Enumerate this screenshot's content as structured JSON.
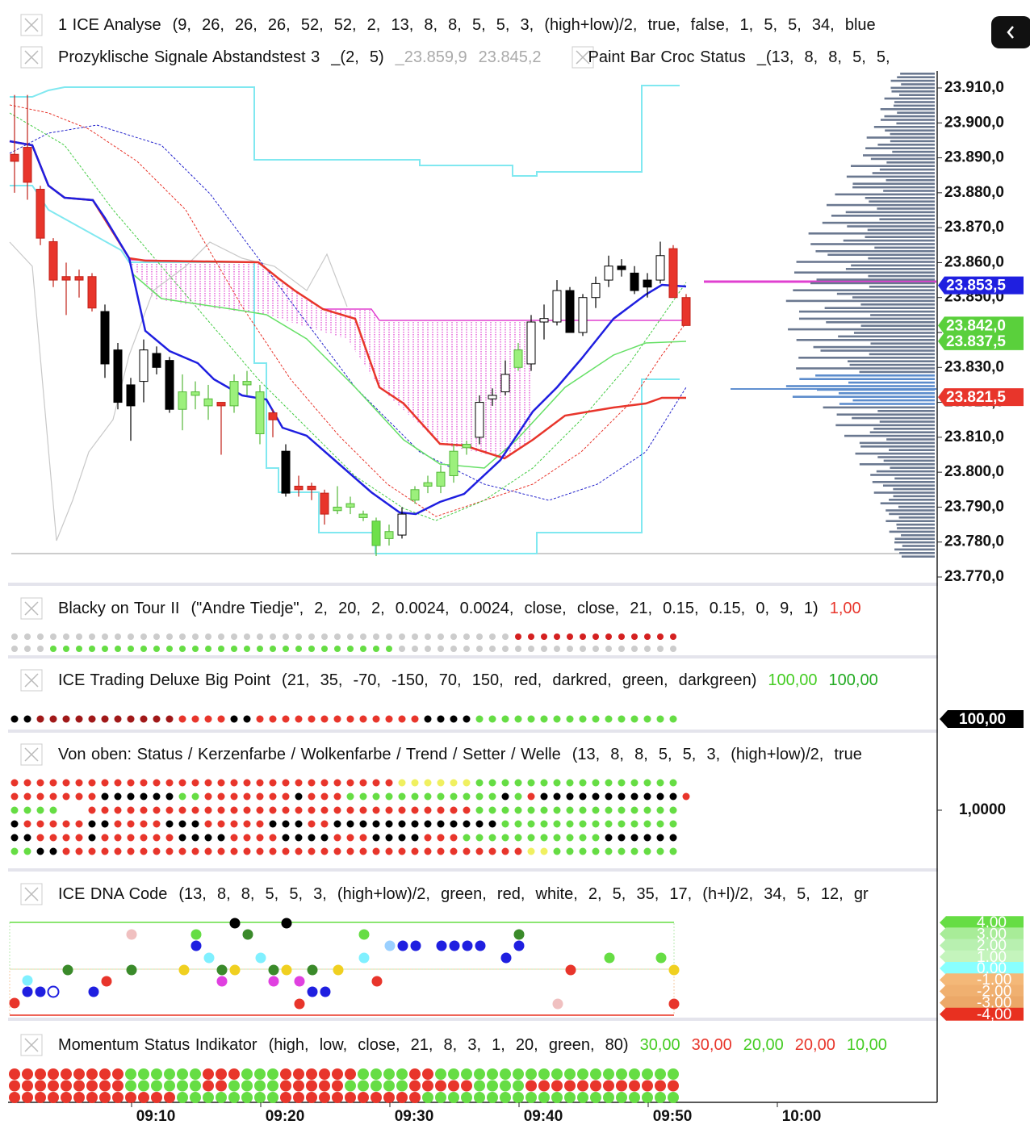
{
  "chart_data": {
    "type": "candlestick",
    "legends": [
      {
        "name": "1 ICE Analyse",
        "params": "(9,  26,  26,  26,  52,  52,  2,  13,  8,  8,  5,  5,  3,  (high+low)/2,  true,  false,  1,  5,  5,  34,  blue"
      },
      {
        "name": "Prozyklische Signale Abstandstest 3",
        "params": "_(2,  5)",
        "values": [
          {
            "value": 23859.9,
            "label": "_23.859,9"
          },
          {
            "value": 23845.2,
            "label": "23.845,2"
          }
        ]
      },
      {
        "name": "Paint Bar Croc Status",
        "params": "_(13,  8,  8,  5,  5,"
      }
    ],
    "ylim": [
      23770,
      23910
    ],
    "yticks": [
      {
        "value": 23910,
        "label": "23.910,0"
      },
      {
        "value": 23900,
        "label": "23.900,0"
      },
      {
        "value": 23890,
        "label": "23.890,0"
      },
      {
        "value": 23880,
        "label": "23.880,0"
      },
      {
        "value": 23870,
        "label": "23.870,0"
      },
      {
        "value": 23860,
        "label": "23.860,0"
      },
      {
        "value": 23850,
        "label": "23.850,0"
      },
      {
        "value": 23840,
        "label": "23.840,0"
      },
      {
        "value": 23830,
        "label": "23.830,0"
      },
      {
        "value": 23820,
        "label": "23.820,0"
      },
      {
        "value": 23810,
        "label": "23.810,0"
      },
      {
        "value": 23800,
        "label": "23.800,0"
      },
      {
        "value": 23790,
        "label": "23.790,0"
      },
      {
        "value": 23780,
        "label": "23.780,0"
      },
      {
        "value": 23770,
        "label": "23.770,0"
      }
    ],
    "price_tags": [
      {
        "value": 23853.5,
        "label": "23.853,5",
        "color": "#1f1fe0"
      },
      {
        "value": 23842.0,
        "label": "23.842,0",
        "color": "#5ad03c"
      },
      {
        "value": 23837.5,
        "label": "23.837,5",
        "color": "#5ad03c"
      },
      {
        "value": 23821.5,
        "label": "23.821,5",
        "color": "#e8352b"
      }
    ],
    "candles": {
      "open": [
        23891,
        23893,
        23881,
        23866,
        23856,
        23856,
        23856,
        23846,
        23835,
        23825,
        23826,
        23834,
        23832,
        23818,
        23822,
        23819,
        23820,
        23819,
        23825,
        23823,
        23817,
        23806,
        23796,
        23796,
        23794,
        23789,
        23790,
        23788,
        23786,
        23781,
        23782,
        23792,
        23796,
        23796,
        23799,
        23807,
        23810,
        23821,
        23823,
        23830,
        23831,
        23843,
        23843,
        23852,
        23840,
        23850,
        23855,
        23859,
        23857,
        23855,
        23855,
        23864,
        23850
      ],
      "high": [
        23908,
        23908,
        23882,
        23867,
        23860,
        23858,
        23857,
        23848,
        23837,
        23827,
        23838,
        23836,
        23833,
        23828,
        23826,
        23825,
        23820,
        23828,
        23829,
        23825,
        23818,
        23808,
        23799,
        23797,
        23795,
        23796,
        23793,
        23789,
        23787,
        23785,
        23790,
        23796,
        23799,
        23802,
        23808,
        23809,
        23822,
        23824,
        23832,
        23837,
        23845,
        23848,
        23855,
        23853,
        23851,
        23856,
        23862,
        23861,
        23859,
        23857,
        23866,
        23865,
        23851
      ],
      "low": [
        23880,
        23878,
        23865,
        23853,
        23845,
        23850,
        23846,
        23827,
        23818,
        23809,
        23820,
        23828,
        23817,
        23812,
        23818,
        23815,
        23805,
        23817,
        23822,
        23808,
        23810,
        23793,
        23793,
        23792,
        23785,
        23788,
        23788,
        23786,
        23776,
        23779,
        23781,
        23791,
        23794,
        23794,
        23797,
        23805,
        23808,
        23819,
        23822,
        23829,
        23829,
        23838,
        23842,
        23840,
        23839,
        23847,
        23853,
        23856,
        23851,
        23850,
        23854,
        23850,
        23842
      ],
      "close": [
        23889,
        23883,
        23867,
        23855,
        23855,
        23855,
        23847,
        23831,
        23820,
        23819,
        23835,
        23830,
        23818,
        23823,
        23823,
        23821,
        23819,
        23826,
        23826,
        23811,
        23815,
        23794,
        23795,
        23795,
        23788,
        23790,
        23791,
        23787,
        23779,
        23783,
        23788,
        23795,
        23797,
        23800,
        23806,
        23808,
        23820,
        23822,
        23828,
        23835,
        23843,
        23844,
        23852,
        23840,
        23850,
        23854,
        23859,
        23858,
        23852,
        23853,
        23862,
        23850,
        23842
      ],
      "colors": [
        "#e8352b",
        "#e8352b",
        "#e8352b",
        "#e8352b",
        "#e8352b",
        "#e8352b",
        "#e8352b",
        "#000000",
        "#000000",
        "#000000",
        "#ffffff",
        "#000000",
        "#000000",
        "#9cf07c",
        "#9cf07c",
        "#9cf07c",
        "#e8352b",
        "#9cf07c",
        "#9cf07c",
        "#9cf07c",
        "#e8352b",
        "#000000",
        "#e8352b",
        "#e8352b",
        "#e8352b",
        "#9cf07c",
        "#9cf07c",
        "#9cf07c",
        "#6ee04a",
        "#9cf07c",
        "#ffffff",
        "#9cf07c",
        "#9cf07c",
        "#9cf07c",
        "#9cf07c",
        "#9cf07c",
        "#ffffff",
        "#ffffff",
        "#ffffff",
        "#9cf07c",
        "#ffffff",
        "#ffffff",
        "#ffffff",
        "#000000",
        "#ffffff",
        "#ffffff",
        "#ffffff",
        "#000000",
        "#000000",
        "#000000",
        "#ffffff",
        "#e8352b",
        "#e8352b"
      ]
    },
    "panes": [
      {
        "name": "Blacky on Tour II",
        "params": "(\"Andre Tiedje\",  2,  20,  2,  0.0024,  0.0024,  close,  close,  21,  0.15,  0.15,  0,  9,  1)",
        "values": [
          {
            "value": 1,
            "label": "1,00",
            "color": "#e8352b"
          }
        ]
      },
      {
        "name": "ICE Trading Deluxe Big Point",
        "params": "(21,  35,  -70,  -150,  70,  150,  red,  darkred,  green,  darkgreen)",
        "values": [
          {
            "value": 100,
            "label": "100,00",
            "color": "#44cc22"
          },
          {
            "value": 100,
            "label": "100,00",
            "color": "#22aa22"
          }
        ],
        "axis_tags": [
          {
            "value": 100,
            "label": "100,00",
            "color": "#000000"
          }
        ]
      },
      {
        "name": "Von oben: Status / Kerzenfarbe / Wolkenfarbe / Trend / Setter / Welle",
        "params": "(13,  8,  8,  5,  5,  3,  (high+low)/2,  true",
        "axis_tags": [
          {
            "value": 1,
            "label": "1,0000"
          }
        ]
      },
      {
        "name": "ICE DNA Code",
        "params": "(13,  8,  8,  5,  5,  3,  (high+low)/2,  green,  red,  white,  2,  5,  35,  17,  (h+l)/2,  34,  5,  12,  gr",
        "axis_tags": [
          {
            "value": 4,
            "label": "4,00",
            "color": "#66dd44"
          },
          {
            "value": 3,
            "label": "3,00",
            "color": "#a8ec98"
          },
          {
            "value": 2,
            "label": "2,00",
            "color": "#b8f0b0"
          },
          {
            "value": 1,
            "label": "1,00",
            "color": "#c4f4bc"
          },
          {
            "value": 0,
            "label": "0,00",
            "color": "#88ffff"
          },
          {
            "value": -1,
            "label": "-1,00",
            "color": "#f4b878"
          },
          {
            "value": -2,
            "label": "-2,00",
            "color": "#f0b070"
          },
          {
            "value": -3,
            "label": "-3,00",
            "color": "#eca868"
          },
          {
            "value": -4,
            "label": "-4,00",
            "color": "#e83020"
          }
        ]
      },
      {
        "name": "Momentum Status Indikator",
        "params": "(high,  low,  close,  21,  8,  3,  1,  20,  green,  80)",
        "values": [
          {
            "value": 30,
            "label": "30,00",
            "color": "#44cc22"
          },
          {
            "value": 30,
            "label": "30,00",
            "color": "#e8352b"
          },
          {
            "value": 20,
            "label": "20,00",
            "color": "#44cc22"
          },
          {
            "value": 20,
            "label": "20,00",
            "color": "#e8352b"
          },
          {
            "value": 10,
            "label": "10,00",
            "color": "#44cc22"
          }
        ]
      }
    ],
    "time_ticks": [
      "09:10",
      "09:20",
      "09:30",
      "09:40",
      "09:50",
      "10:00"
    ]
  }
}
